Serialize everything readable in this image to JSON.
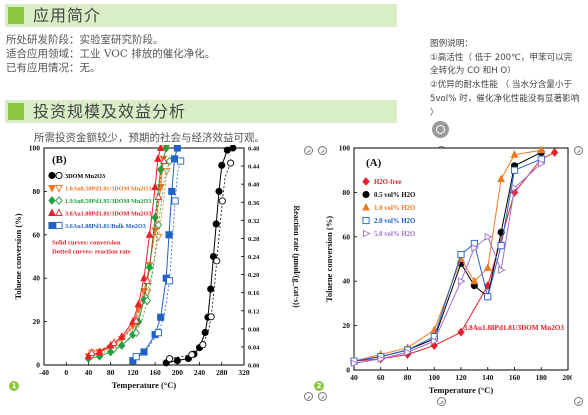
{
  "section1": {
    "title": "应用简介",
    "lines": [
      "所处研发阶段：实验室研究阶段。",
      "适合应用领域：工业 VOC 排放的催化净化。",
      "已有应用情况：无。"
    ]
  },
  "section2": {
    "title": "投资规模及效益分析",
    "line": "所需投资金额较少，预期的社会与经济效益可观。"
  },
  "note": {
    "title": "图例说明：",
    "p1": "①高活性（ 低于 200℃，甲苯可以完全转化为 CO 和H O）",
    "p2": "②优异的耐水性能 （ 当水分含量小于 5vol% 时，催化净化性能没有显著影响 ）"
  },
  "badges": [
    "1",
    "2"
  ],
  "colors": {
    "accent": "#8dc63f",
    "bar": "#d9eec6"
  },
  "chart_data": [
    {
      "type": "line",
      "panel": "(B)",
      "xlabel": "Temperature (°C)",
      "ylabel": "Toluene conversion (%)",
      "y2label": "Reaction rate (μmol/(g_cat·s))",
      "xlim": [
        -40,
        320
      ],
      "ylim": [
        0,
        100
      ],
      "y2lim": [
        0,
        0.48
      ],
      "xticks": [
        "-40",
        "0",
        "40",
        "80",
        "120",
        "160",
        "200",
        "240",
        "280",
        "320"
      ],
      "yticks": [
        "0",
        "20",
        "40",
        "60",
        "80",
        "100"
      ],
      "y2ticks": [
        "0.00",
        "0.04",
        "0.08",
        "0.12",
        "0.16",
        "0.20",
        "0.24",
        "0.28",
        "0.32",
        "0.36",
        "0.40",
        "0.44",
        "0.48"
      ],
      "annotations": [
        "Solid curves: conversion",
        "Dotted curves: reaction rate"
      ],
      "series": [
        {
          "name": "3DOM Mn2O3",
          "color": "#000000",
          "marker": "circle",
          "x": [
            180,
            200,
            220,
            230,
            240,
            250,
            255,
            260,
            265,
            270,
            275,
            280,
            290,
            300
          ],
          "y": [
            1,
            2,
            3,
            5,
            8,
            15,
            22,
            35,
            50,
            65,
            80,
            92,
            99,
            100
          ]
        },
        {
          "name": "1.0Au0.50Pd1.81/3DOM Mn2O3",
          "color": "#f07820",
          "marker": "triangle-down",
          "x": [
            40,
            60,
            80,
            100,
            120,
            130,
            140,
            150,
            160,
            170,
            175,
            180
          ],
          "y": [
            4,
            6,
            8,
            12,
            18,
            26,
            34,
            46,
            62,
            82,
            95,
            100
          ]
        },
        {
          "name": "1.9Au0.50Pd1.95/3DOM Mn2O3",
          "color": "#22a040",
          "marker": "diamond",
          "x": [
            40,
            60,
            80,
            100,
            120,
            130,
            140,
            150,
            160,
            170,
            180
          ],
          "y": [
            3,
            4,
            6,
            9,
            14,
            20,
            30,
            45,
            68,
            90,
            100
          ]
        },
        {
          "name": "3.8Au1.88Pd1.81/3DOM Mn2O3",
          "color": "#e8202a",
          "marker": "triangle-up",
          "x": [
            40,
            60,
            80,
            100,
            120,
            130,
            140,
            150,
            160,
            165,
            170
          ],
          "y": [
            4,
            6,
            9,
            13,
            20,
            28,
            40,
            60,
            82,
            95,
            100
          ]
        },
        {
          "name": "3.6Au1.88Pd1.81/Bulk Mn2O3",
          "color": "#2060c8",
          "marker": "square",
          "x": [
            120,
            140,
            160,
            170,
            180,
            185,
            190,
            195,
            200
          ],
          "y": [
            2,
            6,
            14,
            22,
            40,
            60,
            80,
            95,
            100
          ]
        }
      ]
    },
    {
      "type": "line",
      "panel": "(A)",
      "xlabel": "Temperature (°C)",
      "ylabel": "Toluene conversion (%)",
      "xlim": [
        40,
        200
      ],
      "ylim": [
        0,
        100
      ],
      "xticks": [
        "40",
        "60",
        "80",
        "100",
        "120",
        "140",
        "160",
        "180",
        "200"
      ],
      "yticks": [
        "0",
        "20",
        "40",
        "60",
        "80",
        "100"
      ],
      "annotation": "3.8Au1.88Pd1.81/3DOM Mn2O3",
      "series": [
        {
          "name": "H2O-free",
          "color": "#e8202a",
          "marker": "diamond",
          "x": [
            40,
            60,
            80,
            100,
            120,
            140,
            160,
            180,
            190
          ],
          "y": [
            4,
            5,
            7,
            11,
            17,
            38,
            80,
            95,
            98
          ]
        },
        {
          "name": "0.5 vol% H2O",
          "color": "#000000",
          "marker": "circle-filled",
          "x": [
            40,
            60,
            80,
            100,
            120,
            130,
            140,
            150,
            160,
            180
          ],
          "y": [
            4,
            6,
            9,
            14,
            48,
            38,
            33,
            62,
            92,
            98
          ]
        },
        {
          "name": "1.0 vol% H2O",
          "color": "#f07820",
          "marker": "triangle-up",
          "x": [
            40,
            60,
            80,
            100,
            120,
            130,
            140,
            150,
            160,
            180
          ],
          "y": [
            4,
            7,
            10,
            18,
            50,
            40,
            46,
            86,
            97,
            99
          ]
        },
        {
          "name": "2.0 vol% H2O",
          "color": "#2060c8",
          "marker": "square",
          "x": [
            40,
            60,
            80,
            100,
            120,
            130,
            140,
            150,
            160,
            180
          ],
          "y": [
            4,
            6,
            9,
            15,
            52,
            57,
            33,
            56,
            90,
            95
          ]
        },
        {
          "name": "5.0 vol% H2O",
          "color": "#a070d0",
          "marker": "triangle-right",
          "x": [
            40,
            60,
            80,
            100,
            120,
            130,
            140,
            150,
            160,
            180
          ],
          "y": [
            3,
            5,
            8,
            13,
            40,
            55,
            60,
            45,
            82,
            93
          ]
        }
      ]
    }
  ]
}
